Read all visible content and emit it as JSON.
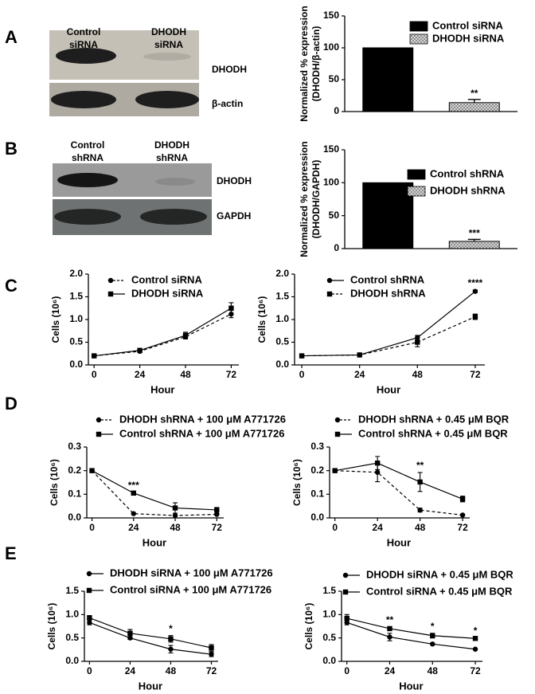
{
  "panel_labels": [
    "A",
    "B",
    "C",
    "D",
    "E"
  ],
  "blots": {
    "A": {
      "lanes": [
        [
          "Control",
          "siRNA"
        ],
        [
          "DHODH",
          "siRNA"
        ]
      ],
      "rows": [
        "DHODH",
        "β-actin"
      ]
    },
    "B": {
      "lanes": [
        [
          "Control",
          "shRNA"
        ],
        [
          "DHODH",
          "shRNA"
        ]
      ],
      "rows": [
        "DHODH",
        "GAPDH"
      ]
    }
  },
  "chart_data": [
    {
      "type": "bar",
      "y_label": [
        "Normalized % expression",
        "(DHODH/β-actin)"
      ],
      "ylim": [
        0,
        150
      ],
      "yticks": [
        0,
        50,
        100,
        150
      ],
      "legend": "right",
      "series": [
        {
          "name": "Control siRNA",
          "color": "#000000",
          "values": [
            100
          ]
        },
        {
          "name": "DHODH siRNA",
          "color": "#9a9a9a",
          "pattern": "dots",
          "values": [
            14
          ],
          "errors": [
            5
          ],
          "annotation": "**"
        }
      ]
    },
    {
      "type": "bar",
      "y_label": [
        "Normalized % expression",
        "(DHODH/GAPDH)"
      ],
      "ylim": [
        0,
        150
      ],
      "yticks": [
        0,
        50,
        100,
        150
      ],
      "legend": "right",
      "series": [
        {
          "name": "Control shRNA",
          "color": "#000000",
          "values": [
            100
          ]
        },
        {
          "name": "DHODH shRNA",
          "color": "#9a9a9a",
          "pattern": "dots",
          "values": [
            11
          ],
          "errors": [
            3
          ],
          "annotation": "***"
        }
      ]
    },
    {
      "type": "line",
      "x_label": "Hour",
      "y_label": "Cells (10⁶)",
      "x": [
        0,
        24,
        48,
        72
      ],
      "xlim": [
        -3,
        76
      ],
      "xticks": [
        0,
        24,
        48,
        72
      ],
      "ylim": [
        0,
        2
      ],
      "yticks": [
        {
          "value": 0,
          "label": "0.0"
        },
        0.5,
        {
          "value": 1,
          "label": "1.0"
        },
        1.5,
        {
          "value": 2,
          "label": "2.0"
        }
      ],
      "legend": "upper left",
      "series": [
        {
          "name": "Control siRNA",
          "color": "#000000",
          "marker": "circle",
          "linestyle": "dashed",
          "values": [
            0.2,
            0.3,
            0.62,
            1.12
          ],
          "errors": [
            0.02,
            0.03,
            0.05,
            0.08
          ]
        },
        {
          "name": "DHODH siRNA",
          "color": "#000000",
          "marker": "square",
          "linestyle": "solid",
          "values": [
            0.2,
            0.32,
            0.65,
            1.25
          ],
          "errors": [
            0.02,
            0.03,
            0.07,
            0.12
          ]
        }
      ]
    },
    {
      "type": "line",
      "x_label": "Hour",
      "y_label": "Cells (10⁶)",
      "x": [
        0,
        24,
        48,
        72
      ],
      "xlim": [
        -3,
        76
      ],
      "xticks": [
        0,
        24,
        48,
        72
      ],
      "ylim": [
        0,
        2
      ],
      "yticks": [
        {
          "value": 0,
          "label": "0.0"
        },
        0.5,
        {
          "value": 1,
          "label": "1.0"
        },
        1.5,
        {
          "value": 2,
          "label": "2.0"
        }
      ],
      "legend": "upper left",
      "annotations": [
        {
          "x": 72,
          "text": "****"
        }
      ],
      "series": [
        {
          "name": "Control shRNA",
          "color": "#000000",
          "marker": "circle",
          "linestyle": "solid",
          "values": [
            0.2,
            0.22,
            0.6,
            1.62
          ],
          "errors": [
            0.02,
            0.02,
            0.05,
            0.03
          ]
        },
        {
          "name": "DHODH shRNA",
          "color": "#000000",
          "marker": "square",
          "linestyle": "dashed",
          "values": [
            0.2,
            0.22,
            0.5,
            1.06
          ],
          "errors": [
            0.02,
            0.02,
            0.1,
            0.06
          ]
        }
      ]
    },
    {
      "type": "line",
      "x_label": "Hour",
      "y_label": "Cells (10⁶)",
      "x": [
        0,
        24,
        48,
        72
      ],
      "xlim": [
        -3,
        76
      ],
      "xticks": [
        0,
        24,
        48,
        72
      ],
      "ylim": [
        0,
        0.3
      ],
      "yticks": [
        {
          "value": 0,
          "label": "0.0"
        },
        0.1,
        0.2,
        0.3
      ],
      "legend": "above",
      "annotations": [
        {
          "x": 24,
          "text": "***"
        }
      ],
      "series": [
        {
          "name": "DHODH shRNA + 100 μM A771726",
          "color": "#000000",
          "marker": "circle",
          "linestyle": "dashed",
          "values": [
            0.2,
            0.018,
            0.01,
            0.015
          ],
          "errors": [
            0,
            0.002,
            0.002,
            0.003
          ]
        },
        {
          "name": "Control shRNA + 100 μM A771726",
          "color": "#000000",
          "marker": "square",
          "linestyle": "solid",
          "values": [
            0.2,
            0.105,
            0.042,
            0.034
          ],
          "errors": [
            0,
            0.003,
            0.022,
            0.01
          ]
        }
      ]
    },
    {
      "type": "line",
      "x_label": "Hour",
      "y_label": "Cells (10⁶)",
      "x": [
        0,
        24,
        48,
        72
      ],
      "xlim": [
        -3,
        76
      ],
      "xticks": [
        0,
        24,
        48,
        72
      ],
      "ylim": [
        0,
        0.3
      ],
      "yticks": [
        {
          "value": 0,
          "label": "0.0"
        },
        0.1,
        0.2,
        0.3
      ],
      "legend": "above",
      "annotations": [
        {
          "x": 48,
          "text": "**"
        }
      ],
      "series": [
        {
          "name": "DHODH shRNA + 0.45 μM BQR",
          "color": "#000000",
          "marker": "circle",
          "linestyle": "dashed",
          "values": [
            0.2,
            0.193,
            0.033,
            0.012
          ],
          "errors": [
            0,
            0.04,
            0.008,
            0.002
          ]
        },
        {
          "name": "Control shRNA + 0.45 μM BQR",
          "color": "#000000",
          "marker": "square",
          "linestyle": "solid",
          "values": [
            0.2,
            0.232,
            0.152,
            0.08
          ],
          "errors": [
            0,
            0.028,
            0.04,
            0.012
          ]
        }
      ]
    },
    {
      "type": "line",
      "x_label": "Hour",
      "y_label": "Cells (10⁶)",
      "x": [
        0,
        24,
        48,
        72
      ],
      "xlim": [
        -3,
        76
      ],
      "xticks": [
        0,
        24,
        48,
        72
      ],
      "ylim": [
        0,
        1.5
      ],
      "yticks": [
        {
          "value": 0,
          "label": "0.0"
        },
        0.5,
        {
          "value": 1,
          "label": "1.0"
        },
        1.5
      ],
      "legend": "upper right",
      "annotations": [
        {
          "x": 48,
          "text": "*"
        }
      ],
      "series": [
        {
          "name": "DHODH siRNA + 100 μM A771726",
          "color": "#000000",
          "marker": "circle",
          "linestyle": "solid",
          "values": [
            0.83,
            0.5,
            0.26,
            0.15
          ],
          "errors": [
            0.05,
            0.03,
            0.08,
            0.05
          ]
        },
        {
          "name": "Control siRNA + 100 μM A771726",
          "color": "#000000",
          "marker": "square",
          "linestyle": "solid",
          "values": [
            0.93,
            0.6,
            0.48,
            0.29
          ],
          "errors": [
            0.05,
            0.08,
            0.07,
            0.07
          ]
        }
      ]
    },
    {
      "type": "line",
      "x_label": "Hour",
      "y_label": "Cells (10⁶)",
      "x": [
        0,
        24,
        48,
        72
      ],
      "xlim": [
        -3,
        76
      ],
      "xticks": [
        0,
        24,
        48,
        72
      ],
      "ylim": [
        0,
        1.5
      ],
      "yticks": [
        {
          "value": 0,
          "label": "0.0"
        },
        0.5,
        {
          "value": 1,
          "label": "1.0"
        },
        1.5
      ],
      "legend": "upper right",
      "annotations": [
        {
          "x": 24,
          "text": "**"
        },
        {
          "x": 48,
          "text": "*"
        },
        {
          "x": 72,
          "text": "*"
        }
      ],
      "series": [
        {
          "name": "DHODH siRNA + 0.45 μM BQR",
          "color": "#000000",
          "marker": "circle",
          "linestyle": "solid",
          "values": [
            0.83,
            0.52,
            0.37,
            0.26
          ],
          "errors": [
            0.05,
            0.08,
            0.02,
            0.01
          ]
        },
        {
          "name": "Control siRNA + 0.45 μM BQR",
          "color": "#000000",
          "marker": "square",
          "linestyle": "solid",
          "values": [
            0.92,
            0.7,
            0.55,
            0.49
          ],
          "errors": [
            0.08,
            0.04,
            0.05,
            0.02
          ]
        }
      ]
    }
  ]
}
